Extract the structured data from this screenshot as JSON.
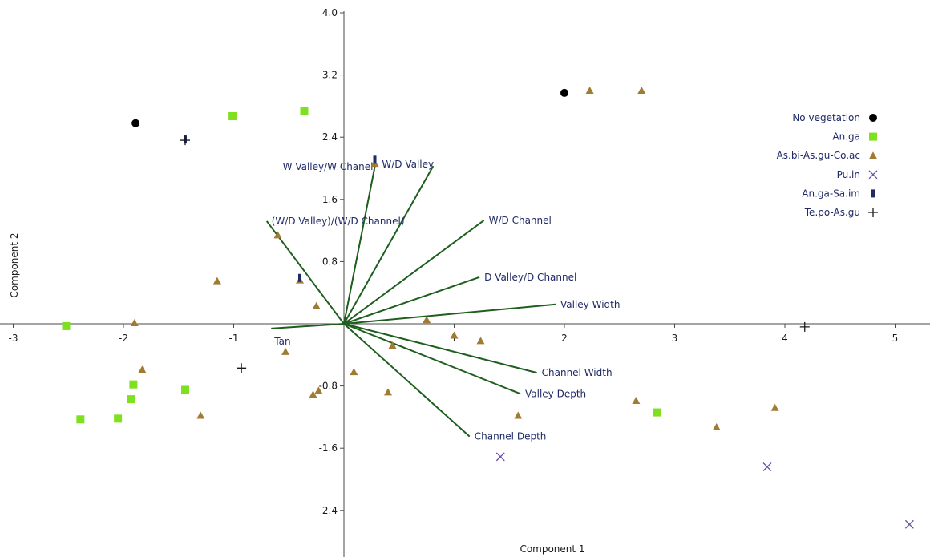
{
  "chart_data": {
    "type": "scatter",
    "title": "",
    "xlabel": "Component 1",
    "ylabel": "Component 2",
    "xlim": [
      -3.1,
      5.3
    ],
    "ylim": [
      -2.95,
      4.05
    ],
    "x_ticks": [
      {
        "value": -3,
        "label": "-3"
      },
      {
        "value": -2,
        "label": "-2"
      },
      {
        "value": -1,
        "label": "-1"
      },
      {
        "value": 1,
        "label": "1"
      },
      {
        "value": 2,
        "label": "2"
      },
      {
        "value": 3,
        "label": "3"
      },
      {
        "value": 4,
        "label": "4"
      },
      {
        "value": 5,
        "label": "5"
      }
    ],
    "y_ticks": [
      {
        "value": 4.0,
        "label": "4.0"
      },
      {
        "value": 3.2,
        "label": "3.2"
      },
      {
        "value": 2.4,
        "label": "2.4"
      },
      {
        "value": 1.6,
        "label": "1.6"
      },
      {
        "value": 0.8,
        "label": "0.8"
      },
      {
        "value": -0.8,
        "label": "-0.8"
      },
      {
        "value": -1.6,
        "label": "-1.6"
      },
      {
        "value": -2.4,
        "label": "-2.4"
      }
    ],
    "legend_position": "top-right",
    "series": [
      {
        "name": "No vegetation",
        "marker": "circle",
        "color": "#000000",
        "points": [
          [
            -1.89,
            2.58
          ],
          [
            2.0,
            2.97
          ]
        ]
      },
      {
        "name": "An.ga",
        "marker": "square",
        "color": "#7fe01f",
        "points": [
          [
            -1.01,
            2.67
          ],
          [
            -0.36,
            2.74
          ],
          [
            -2.52,
            -0.03
          ],
          [
            -1.91,
            -0.78
          ],
          [
            -1.93,
            -0.97
          ],
          [
            -2.05,
            -1.22
          ],
          [
            -2.39,
            -1.23
          ],
          [
            -1.44,
            -0.85
          ],
          [
            2.84,
            -1.14
          ]
        ]
      },
      {
        "name": "As.bi-As.gu-Co.ac",
        "marker": "triangle",
        "color": "#a07b32",
        "points": [
          [
            2.23,
            3.0
          ],
          [
            2.7,
            3.0
          ],
          [
            0.28,
            2.06
          ],
          [
            -0.6,
            1.14
          ],
          [
            -1.15,
            0.55
          ],
          [
            -0.4,
            0.56
          ],
          [
            -0.25,
            0.23
          ],
          [
            -1.9,
            0.01
          ],
          [
            0.75,
            0.05
          ],
          [
            1.0,
            -0.15
          ],
          [
            1.24,
            -0.22
          ],
          [
            0.44,
            -0.28
          ],
          [
            -0.53,
            -0.36
          ],
          [
            0.09,
            -0.62
          ],
          [
            -1.83,
            -0.59
          ],
          [
            0.4,
            -0.88
          ],
          [
            -0.23,
            -0.86
          ],
          [
            -0.28,
            -0.91
          ],
          [
            -1.3,
            -1.18
          ],
          [
            1.58,
            -1.18
          ],
          [
            2.65,
            -0.99
          ],
          [
            3.38,
            -1.33
          ],
          [
            3.91,
            -1.08
          ]
        ]
      },
      {
        "name": "Pu.in",
        "marker": "x",
        "color": "#6b4fa8",
        "points": [
          [
            1.42,
            -1.71
          ],
          [
            3.84,
            -1.84
          ],
          [
            5.13,
            -2.58
          ]
        ]
      },
      {
        "name": "An.ga-Sa.im",
        "marker": "bar",
        "color": "#1f2a66",
        "points": [
          [
            0.28,
            2.11
          ],
          [
            -0.4,
            0.59
          ],
          [
            -1.44,
            2.37
          ]
        ]
      },
      {
        "name": "Te.po-As.gu",
        "marker": "plus",
        "color": "#1a1a1a",
        "points": [
          [
            -0.93,
            -0.57
          ],
          [
            4.18,
            -0.04
          ],
          [
            -1.44,
            2.36
          ]
        ]
      }
    ],
    "vectors": [
      {
        "label": "W Valley/W Chanel",
        "x": 0.28,
        "y": 2.02,
        "label_side": "left"
      },
      {
        "label": "W/D Valley",
        "x": 0.81,
        "y": 2.03,
        "label_side": "left-up"
      },
      {
        "label": "(W/D Valley)/(W/D Channel)",
        "x": -0.7,
        "y": 1.32,
        "label_side": "right"
      },
      {
        "label": "W/D Channel",
        "x": 1.27,
        "y": 1.33,
        "label_side": "right"
      },
      {
        "label": "D Valley/D Channel",
        "x": 1.23,
        "y": 0.6,
        "label_side": "right"
      },
      {
        "label": "Valley Width",
        "x": 1.92,
        "y": 0.25,
        "label_side": "right"
      },
      {
        "label": "Tan",
        "x": -0.66,
        "y": -0.06,
        "label_side": "below"
      },
      {
        "label": "Channel Width",
        "x": 1.75,
        "y": -0.63,
        "label_side": "right"
      },
      {
        "label": "Valley Depth",
        "x": 1.6,
        "y": -0.9,
        "label_side": "right"
      },
      {
        "label": "Channel Depth",
        "x": 1.14,
        "y": -1.45,
        "label_side": "right"
      }
    ],
    "vector_color": "#1e5e1e"
  }
}
